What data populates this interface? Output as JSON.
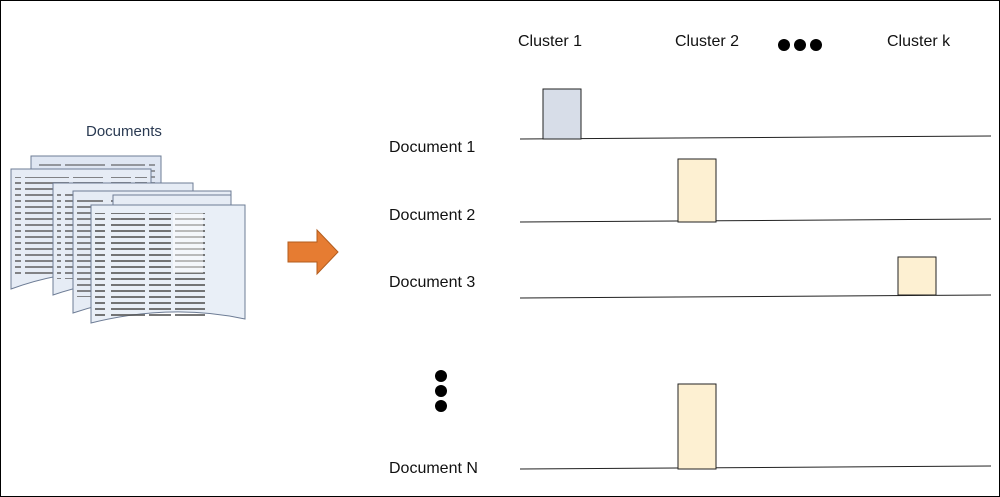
{
  "documents_label": "Documents",
  "clusters": [
    "Cluster 1",
    "Cluster 2",
    "Cluster k"
  ],
  "rows": [
    {
      "label": "Document 1",
      "cluster_index": 0
    },
    {
      "label": "Document 2",
      "cluster_index": 1
    },
    {
      "label": "Document 3",
      "cluster_index": 2
    },
    {
      "label": "Document N",
      "cluster_index": 1
    }
  ],
  "colors": {
    "arrow": "#e67c32",
    "bar_cluster_1": "#d7dde8",
    "bar_other": "#fdf0d2",
    "line": "#222222"
  }
}
